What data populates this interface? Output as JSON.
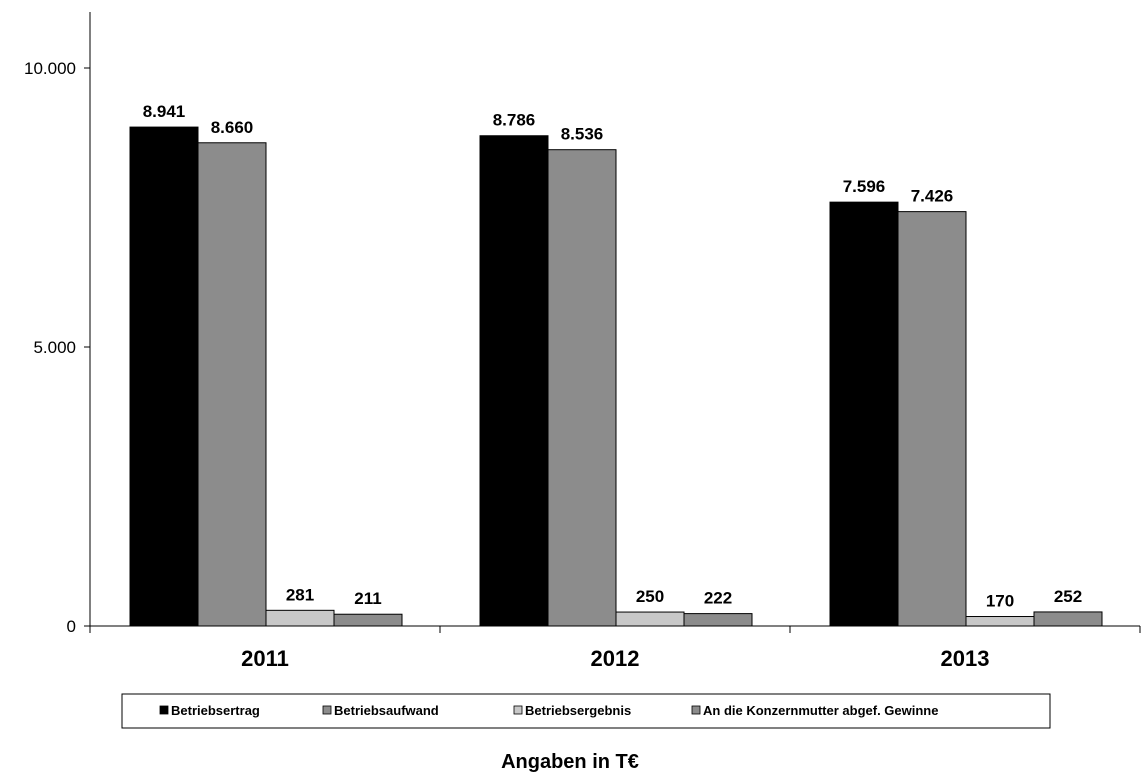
{
  "chart_data": {
    "type": "bar",
    "categories": [
      "2011",
      "2012",
      "2013"
    ],
    "series": [
      {
        "name": "Betriebsertrag",
        "values": [
          8941,
          8786,
          7596
        ],
        "color": "#000000",
        "labels": [
          "8.941",
          "8.786",
          "7.596"
        ]
      },
      {
        "name": "Betriebsaufwand",
        "values": [
          8660,
          8536,
          7426
        ],
        "color": "#8c8c8c",
        "labels": [
          "8.660",
          "8.536",
          "7.426"
        ]
      },
      {
        "name": "Betriebsergebnis",
        "values": [
          281,
          250,
          170
        ],
        "color": "#c8c8c8",
        "labels": [
          "281",
          "250",
          "170"
        ]
      },
      {
        "name": "An die Konzernmutter abgef. Gewinne",
        "values": [
          211,
          222,
          252
        ],
        "color": "#8c8c8c",
        "labels": [
          "211",
          "222",
          "252"
        ]
      }
    ],
    "ylim": [
      0,
      10000
    ],
    "yticks": [
      0,
      5000,
      10000
    ],
    "ytick_labels": [
      "0",
      "5.000",
      "10.000"
    ],
    "grid": false,
    "legend_position": "bottom",
    "note": "Angaben in T€"
  }
}
